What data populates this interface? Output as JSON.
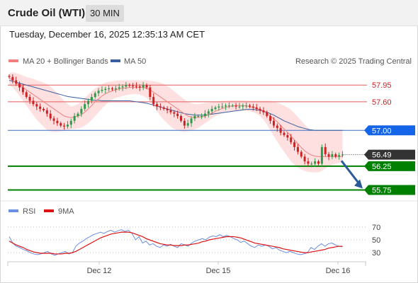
{
  "header": {
    "title": "Crude Oil (WTI)",
    "timeframe": "30 MIN"
  },
  "timestamp": "Tuesday, December 16, 2025 12:35:13 AM CET",
  "copyright": "Research © 2025 Trading Central",
  "colors": {
    "bull": "#2f9a4a",
    "bear": "#cc2222",
    "ma20": "#f08080",
    "ma50": "#3a5fa0",
    "band": "#ffd6d6",
    "resistance": "#e85b5b",
    "pivot": "#3a6fc8",
    "support": "#008000",
    "price_tag": "#333333",
    "pivot_tag": "#1565e8",
    "rsi": "#6a8fe0",
    "rsi_ma": "#dd1111",
    "arrow": "#2a5a9a"
  },
  "chart_data": [
    {
      "type": "candlestick",
      "title": "",
      "legend": [
        {
          "name": "MA 20 + Bollinger Bands",
          "color": "#f08080"
        },
        {
          "name": "MA 50",
          "color": "#3a5fa0"
        }
      ],
      "legend_position": "top-left",
      "ylim": [
        55.55,
        58.25
      ],
      "x_ticks": [
        "Dec 12",
        "Dec 15",
        "Dec 16"
      ],
      "levels": [
        {
          "value": 57.95,
          "label": "57.95",
          "kind": "resistance"
        },
        {
          "value": 57.6,
          "label": "57.60",
          "kind": "resistance"
        },
        {
          "value": 57.0,
          "label": "57.00",
          "kind": "pivot"
        },
        {
          "value": 56.25,
          "label": "56.25",
          "kind": "support"
        },
        {
          "value": 55.75,
          "label": "55.75",
          "kind": "support"
        }
      ],
      "last_price": {
        "value": 56.49,
        "label": "56.49"
      },
      "projection": {
        "from": 56.45,
        "to": 55.75,
        "direction": "down"
      },
      "close": [
        58.12,
        58.05,
        57.98,
        57.9,
        57.8,
        57.7,
        57.62,
        57.55,
        57.5,
        57.45,
        57.42,
        57.35,
        57.25,
        57.2,
        57.15,
        57.1,
        57.08,
        57.12,
        57.2,
        57.3,
        57.35,
        57.45,
        57.55,
        57.62,
        57.7,
        57.78,
        57.83,
        57.85,
        57.87,
        57.88,
        57.86,
        57.88,
        57.9,
        57.92,
        57.95,
        57.94,
        57.93,
        57.92,
        57.9,
        57.95,
        57.9,
        57.7,
        57.55,
        57.5,
        57.48,
        57.45,
        57.42,
        57.38,
        57.35,
        57.3,
        57.2,
        57.1,
        57.15,
        57.25,
        57.3,
        57.3,
        57.3,
        57.35,
        57.4,
        57.45,
        57.48,
        57.5,
        57.5,
        57.52,
        57.52,
        57.52,
        57.5,
        57.5,
        57.52,
        57.52,
        57.5,
        57.48,
        57.45,
        57.42,
        57.38,
        57.3,
        57.2,
        57.1,
        57.05,
        56.95,
        56.9,
        56.85,
        56.75,
        56.65,
        56.55,
        56.45,
        56.35,
        56.3,
        56.3,
        56.35,
        56.3,
        56.65,
        56.5,
        56.45,
        56.5,
        56.45,
        56.48,
        56.49
      ],
      "ma20": [
        58.1,
        58.05,
        58.0,
        57.95,
        57.9,
        57.85,
        57.8,
        57.75,
        57.7,
        57.65,
        57.6,
        57.55,
        57.5,
        57.45,
        57.4,
        57.35,
        57.3,
        57.28,
        57.27,
        57.28,
        57.3,
        57.33,
        57.38,
        57.45,
        57.52,
        57.6,
        57.66,
        57.72,
        57.77,
        57.8,
        57.83,
        57.85,
        57.87,
        57.88,
        57.89,
        57.9,
        57.9,
        57.9,
        57.9,
        57.9,
        57.88,
        57.85,
        57.8,
        57.75,
        57.7,
        57.65,
        57.6,
        57.55,
        57.5,
        57.45,
        57.4,
        57.35,
        57.3,
        57.28,
        57.27,
        57.27,
        57.28,
        57.3,
        57.33,
        57.36,
        57.4,
        57.43,
        57.46,
        57.48,
        57.5,
        57.51,
        57.52,
        57.52,
        57.52,
        57.51,
        57.5,
        57.48,
        57.46,
        57.44,
        57.4,
        57.36,
        57.3,
        57.24,
        57.18,
        57.1,
        57.03,
        56.96,
        56.88,
        56.8,
        56.72,
        56.64,
        56.57,
        56.52,
        56.48,
        56.46,
        56.45,
        56.45,
        56.45,
        56.45,
        56.45,
        56.45,
        56.45,
        56.45
      ],
      "bb_upper": [
        58.2,
        58.22,
        58.2,
        58.18,
        58.15,
        58.12,
        58.1,
        58.08,
        58.05,
        58.03,
        58.0,
        57.97,
        57.92,
        57.85,
        57.78,
        57.7,
        57.62,
        57.55,
        57.5,
        57.52,
        57.55,
        57.6,
        57.68,
        57.75,
        57.82,
        57.88,
        57.93,
        57.97,
        58.0,
        58.02,
        58.03,
        58.04,
        58.05,
        58.05,
        58.05,
        58.05,
        58.05,
        58.05,
        58.05,
        58.05,
        58.05,
        58.04,
        58.03,
        58.02,
        58.0,
        57.97,
        57.93,
        57.88,
        57.82,
        57.76,
        57.7,
        57.65,
        57.6,
        57.57,
        57.55,
        57.55,
        57.56,
        57.57,
        57.58,
        57.59,
        57.6,
        57.61,
        57.62,
        57.62,
        57.63,
        57.63,
        57.63,
        57.63,
        57.63,
        57.63,
        57.62,
        57.62,
        57.62,
        57.62,
        57.62,
        57.62,
        57.62,
        57.6,
        57.58,
        57.55,
        57.52,
        57.48,
        57.43,
        57.36,
        57.28,
        57.2,
        57.12,
        57.05,
        57.0,
        57.0,
        57.0,
        57.0,
        57.0,
        57.0,
        57.0,
        57.0,
        57.0,
        57.0
      ],
      "bb_lower": [
        57.95,
        57.9,
        57.82,
        57.72,
        57.62,
        57.52,
        57.42,
        57.32,
        57.22,
        57.15,
        57.08,
        57.0,
        56.98,
        56.97,
        56.97,
        56.98,
        56.99,
        57.0,
        57.02,
        57.03,
        57.04,
        57.06,
        57.1,
        57.15,
        57.22,
        57.3,
        57.38,
        57.46,
        57.53,
        57.6,
        57.65,
        57.68,
        57.7,
        57.72,
        57.74,
        57.75,
        57.76,
        57.76,
        57.75,
        57.72,
        57.68,
        57.6,
        57.5,
        57.4,
        57.3,
        57.22,
        57.15,
        57.08,
        57.03,
        57.0,
        56.98,
        56.97,
        56.98,
        57.0,
        57.02,
        57.05,
        57.1,
        57.15,
        57.2,
        57.25,
        57.3,
        57.33,
        57.36,
        57.38,
        57.4,
        57.4,
        57.4,
        57.41,
        57.41,
        57.41,
        57.4,
        57.38,
        57.35,
        57.3,
        57.22,
        57.12,
        57.0,
        56.88,
        56.77,
        56.65,
        56.55,
        56.45,
        56.35,
        56.28,
        56.22,
        56.18,
        56.15,
        56.13,
        56.12,
        56.12,
        56.12,
        56.15,
        56.2,
        56.25,
        56.28,
        56.3,
        56.32,
        56.33
      ],
      "ma50": [
        58.05,
        58.03,
        58.01,
        57.99,
        57.97,
        57.95,
        57.93,
        57.91,
        57.89,
        57.87,
        57.85,
        57.83,
        57.81,
        57.79,
        57.77,
        57.75,
        57.73,
        57.71,
        57.7,
        57.69,
        57.68,
        57.67,
        57.66,
        57.65,
        57.64,
        57.63,
        57.63,
        57.62,
        57.62,
        57.62,
        57.62,
        57.62,
        57.62,
        57.62,
        57.62,
        57.62,
        57.61,
        57.6,
        57.59,
        57.58,
        57.57,
        57.55,
        57.53,
        57.51,
        57.49,
        57.47,
        57.45,
        57.43,
        57.41,
        57.39,
        57.37,
        57.35,
        57.34,
        57.33,
        57.32,
        57.32,
        57.32,
        57.32,
        57.33,
        57.34,
        57.35,
        57.36,
        57.37,
        57.38,
        57.39,
        57.4,
        57.41,
        57.42,
        57.43,
        57.44,
        57.44,
        57.44,
        57.43,
        57.42,
        57.4,
        57.38,
        57.35,
        57.32,
        57.28,
        57.24,
        57.2,
        57.17,
        57.14,
        57.11,
        57.08,
        57.06,
        57.04,
        57.02,
        57.01,
        57.0,
        57.0,
        57.0,
        57.0,
        57.0,
        57.0,
        57.0,
        57.0,
        57.0
      ]
    },
    {
      "type": "line",
      "title": "",
      "legend": [
        {
          "name": "RSI",
          "color": "#6a8fe0"
        },
        {
          "name": "9MA",
          "color": "#dd1111"
        }
      ],
      "legend_position": "top-left",
      "ylim": [
        18,
        82
      ],
      "y_ticks": [
        70,
        50,
        30
      ],
      "rsi": [
        55,
        45,
        40,
        38,
        35,
        33,
        30,
        28,
        27,
        28,
        30,
        32,
        28,
        26,
        28,
        30,
        32,
        28,
        30,
        40,
        45,
        48,
        52,
        55,
        58,
        60,
        62,
        60,
        63,
        65,
        62,
        64,
        66,
        63,
        65,
        60,
        50,
        55,
        45,
        48,
        42,
        44,
        40,
        38,
        42,
        40,
        43,
        40,
        38,
        44,
        42,
        40,
        45,
        48,
        50,
        52,
        50,
        54,
        56,
        55,
        58,
        55,
        57,
        55,
        52,
        50,
        46,
        48,
        44,
        40,
        38,
        42,
        40,
        42,
        40,
        36,
        38,
        34,
        32,
        30,
        32,
        30,
        28,
        27,
        28,
        30,
        38,
        35,
        40,
        44,
        40,
        44,
        45,
        42,
        40,
        39
      ],
      "rsi_ma": [
        48,
        45,
        42,
        40,
        38,
        35,
        33,
        31,
        30,
        29,
        29,
        29,
        29,
        28,
        28,
        28,
        29,
        29,
        30,
        32,
        35,
        38,
        41,
        44,
        47,
        50,
        53,
        55,
        57,
        59,
        60,
        61,
        62,
        62,
        62,
        61,
        59,
        57,
        55,
        52,
        50,
        48,
        46,
        44,
        43,
        42,
        42,
        41,
        41,
        41,
        42,
        42,
        43,
        44,
        45,
        47,
        48,
        50,
        51,
        52,
        53,
        54,
        55,
        55,
        55,
        54,
        53,
        51,
        49,
        47,
        45,
        44,
        43,
        42,
        41,
        40,
        39,
        38,
        36,
        35,
        34,
        33,
        32,
        31,
        30,
        30,
        31,
        32,
        33,
        34,
        35,
        37,
        38,
        39,
        40,
        40
      ]
    }
  ]
}
